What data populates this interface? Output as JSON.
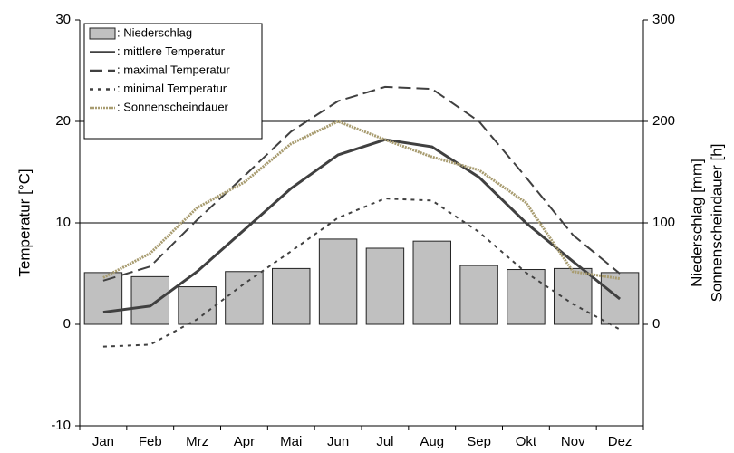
{
  "chart_data": {
    "type": "combo",
    "ylabel": "Temperatur [°C]",
    "y2label": [
      "Niederschlag [mm]",
      "Sonnenscheindauer [h]"
    ],
    "categories": [
      "Jan",
      "Feb",
      "Mrz",
      "Apr",
      "Mai",
      "Jun",
      "Jul",
      "Aug",
      "Sep",
      "Okt",
      "Nov",
      "Dez"
    ],
    "ylim": [
      -10,
      30
    ],
    "yticks": [
      -10,
      0,
      10,
      20,
      30
    ],
    "y2lim": [
      -100,
      300
    ],
    "y2ticks": [
      0,
      100,
      200,
      300
    ],
    "grid": true,
    "legend": "top-left",
    "series": [
      {
        "name": ": Niederschlag",
        "type": "bar",
        "axis": "y2",
        "color": "#c0c0c0",
        "values": [
          51,
          47,
          37,
          52,
          55,
          84,
          75,
          82,
          58,
          54,
          55,
          51
        ]
      },
      {
        "name": ": mittlere Temperatur",
        "type": "line",
        "style": "solid",
        "color": "#404040",
        "values": [
          1.2,
          1.8,
          5.2,
          9.3,
          13.4,
          16.7,
          18.2,
          17.5,
          14.5,
          10.0,
          6.2,
          2.5
        ]
      },
      {
        "name": ": maximal Temperatur",
        "type": "line",
        "style": "dashed",
        "color": "#404040",
        "values": [
          4.3,
          5.7,
          10.3,
          14.6,
          19.0,
          22.0,
          23.4,
          23.2,
          20.0,
          14.5,
          8.8,
          5.0
        ]
      },
      {
        "name": ": minimal Temperatur",
        "type": "line",
        "style": "dotted",
        "color": "#404040",
        "values": [
          -2.2,
          -2.0,
          0.5,
          4.0,
          7.2,
          10.5,
          12.4,
          12.2,
          9.1,
          5.1,
          2.0,
          -0.5
        ]
      },
      {
        "name": ": Sonnenscheindauer",
        "type": "line",
        "style": "dense",
        "axis": "y2",
        "color": "#a89c70",
        "values": [
          46,
          70,
          115,
          140,
          178,
          200,
          182,
          165,
          152,
          120,
          52,
          45
        ]
      }
    ]
  }
}
